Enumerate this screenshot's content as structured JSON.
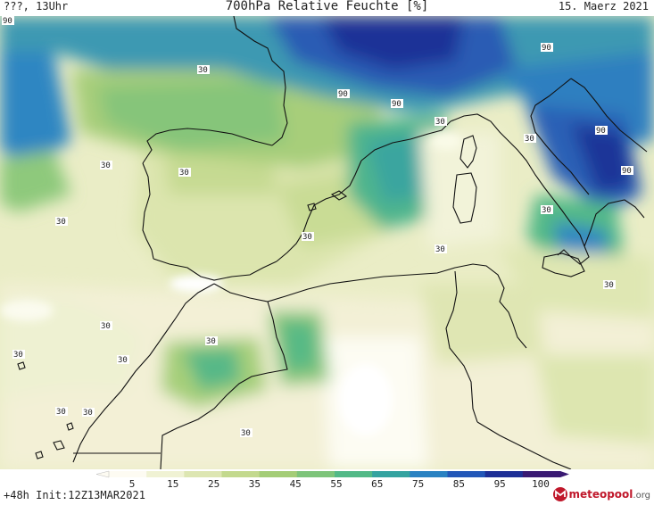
{
  "header": {
    "left": "???, 13Uhr",
    "title": "700hPa Relative Feuchte [%]",
    "date": "15. Maerz 2021"
  },
  "footer": {
    "run_info": "+48h Init:12Z13MAR2021",
    "logo_main": "meteopool",
    "logo_domain": ".org"
  },
  "legend": {
    "ticks": [
      "5",
      "15",
      "25",
      "35",
      "45",
      "55",
      "65",
      "75",
      "85",
      "95",
      "100"
    ],
    "colors": [
      "#fdfbf2",
      "#f0f2d4",
      "#dde6b2",
      "#c3d98e",
      "#a4cd77",
      "#7dc47a",
      "#52b987",
      "#34a3a0",
      "#2a82c2",
      "#2257b8",
      "#1d2f96",
      "#3a1a73"
    ]
  },
  "contour_labels": [
    "90",
    "30",
    "30",
    "90",
    "90",
    "90",
    "30",
    "30",
    "30",
    "30",
    "90",
    "30",
    "90",
    "30",
    "30",
    "30",
    "30",
    "30",
    "30",
    "30",
    "30",
    "30",
    "30"
  ],
  "icons": {
    "logo": "meteopool-logo-icon"
  }
}
